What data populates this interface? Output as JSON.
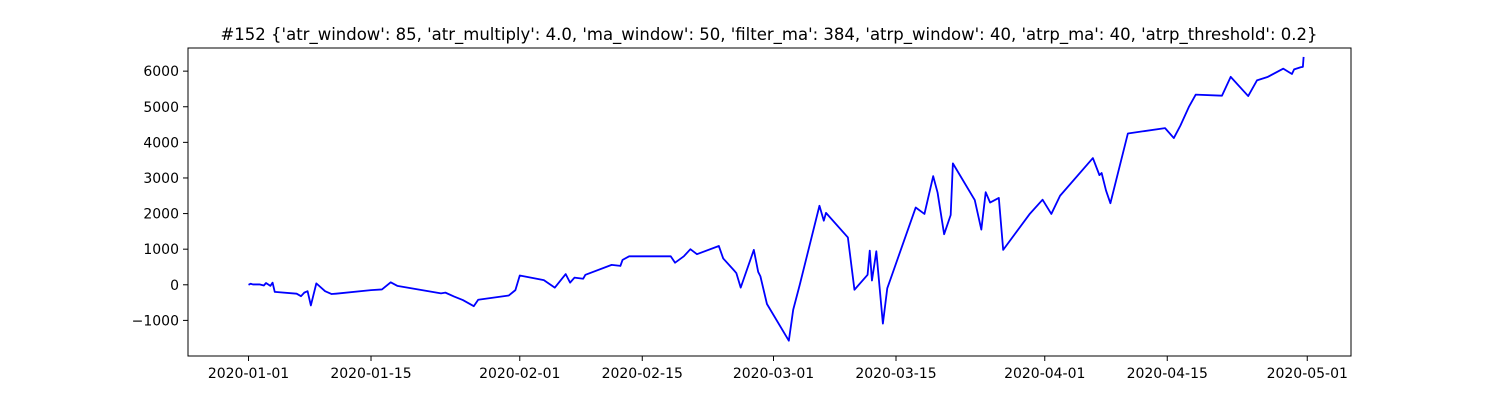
{
  "chart_data": {
    "type": "line",
    "title": "#152 {'atr_window': 85, 'atr_multiply': 4.0, 'ma_window': 50, 'filter_ma': 384, 'atrp_window': 40, 'atrp_ma': 40, 'atrp_threshold': 0.2}",
    "xlabel": "",
    "ylabel": "",
    "x_axis_type": "date",
    "xlim": [
      "2019-12-25T02:00",
      "2020-05-06T00:00"
    ],
    "ylim": [
      -2000,
      6650
    ],
    "grid": false,
    "legend": "none",
    "line_color": "#0000ff",
    "x_ticks": [
      "2020-01-01",
      "2020-01-15",
      "2020-02-01",
      "2020-02-15",
      "2020-03-01",
      "2020-03-15",
      "2020-04-01",
      "2020-04-15",
      "2020-05-01"
    ],
    "x_tick_labels": [
      "2020-01-01",
      "2020-01-15",
      "2020-02-01",
      "2020-02-15",
      "2020-03-01",
      "2020-03-15",
      "2020-04-01",
      "2020-04-15",
      "2020-05-01"
    ],
    "y_ticks": [
      -1000,
      0,
      1000,
      2000,
      3000,
      4000,
      5000,
      6000
    ],
    "y_tick_labels": [
      "−1000",
      "0",
      "1000",
      "2000",
      "3000",
      "4000",
      "5000",
      "6000"
    ],
    "series": [
      {
        "x": [
          "2020-01-01T00:00",
          "2020-01-01T06:00",
          "2020-01-01T12:00",
          "2020-01-02T06:00",
          "2020-01-02T18:00",
          "2020-01-03T00:00",
          "2020-01-03T12:00",
          "2020-01-03T18:00",
          "2020-01-04T00:00",
          "2020-01-06T12:00",
          "2020-01-07T00:00",
          "2020-01-07T09:00",
          "2020-01-07T18:00",
          "2020-01-08T03:00",
          "2020-01-08T18:00",
          "2020-01-09T18:00",
          "2020-01-10T12:00",
          "2020-01-11T00:00",
          "2020-01-15T00:00",
          "2020-01-16T06:00",
          "2020-01-17T06:00",
          "2020-01-18T00:00",
          "2020-01-23T00:00",
          "2020-01-23T12:00",
          "2020-01-24T12:00",
          "2020-01-25T12:00",
          "2020-01-26T18:00",
          "2020-01-27T06:00",
          "2020-01-30T18:00",
          "2020-01-31T12:00",
          "2020-02-01T00:00",
          "2020-02-03T18:00",
          "2020-02-05T00:00",
          "2020-02-06T06:00",
          "2020-02-06T18:00",
          "2020-02-07T06:00",
          "2020-02-08T06:00",
          "2020-02-08T12:00",
          "2020-02-11T12:00",
          "2020-02-12T12:00",
          "2020-02-12T18:00",
          "2020-02-13T12:00",
          "2020-02-18T06:00",
          "2020-02-18T18:00",
          "2020-02-19T18:00",
          "2020-02-20T12:00",
          "2020-02-21T06:00",
          "2020-02-23T18:00",
          "2020-02-24T06:00",
          "2020-02-25T12:00",
          "2020-02-25T18:00",
          "2020-02-26T06:00",
          "2020-02-27T18:00",
          "2020-02-28T06:00",
          "2020-02-28T12:00",
          "2020-02-29T06:00",
          "2020-03-02T18:00",
          "2020-03-03T06:00",
          "2020-03-04T00:00",
          "2020-03-06T06:00",
          "2020-03-06T18:00",
          "2020-03-07T00:00",
          "2020-03-09T12:00",
          "2020-03-10T06:00",
          "2020-03-11T18:00",
          "2020-03-12T00:00",
          "2020-03-12T06:00",
          "2020-03-12T18:00",
          "2020-03-13T12:00",
          "2020-03-14T00:00",
          "2020-03-17T06:00",
          "2020-03-18T06:00",
          "2020-03-19T06:00",
          "2020-03-19T18:00",
          "2020-03-20T12:00",
          "2020-03-21T06:00",
          "2020-03-21T12:00",
          "2020-03-24T00:00",
          "2020-03-24T18:00",
          "2020-03-25T06:00",
          "2020-03-25T18:00",
          "2020-03-26T18:00",
          "2020-03-27T06:00",
          "2020-03-30T06:00",
          "2020-03-31T18:00",
          "2020-04-01T18:00",
          "2020-04-02T18:00",
          "2020-04-06T12:00",
          "2020-04-07T06:00",
          "2020-04-07T12:00",
          "2020-04-08T00:00",
          "2020-04-08T12:00",
          "2020-04-10T12:00",
          "2020-04-14T18:00",
          "2020-04-15T18:00",
          "2020-04-16T12:00",
          "2020-04-17T12:00",
          "2020-04-18T06:00",
          "2020-04-21T06:00",
          "2020-04-22T06:00",
          "2020-04-24T06:00",
          "2020-04-25T06:00",
          "2020-04-26T12:00",
          "2020-04-28T06:00",
          "2020-04-29T06:00",
          "2020-04-29T12:00",
          "2020-04-30T06:00",
          "2020-04-30T12:00",
          "2020-04-30T14:00"
        ],
        "y": [
          0,
          30,
          10,
          10,
          -20,
          50,
          -30,
          60,
          -200,
          -250,
          -320,
          -220,
          -180,
          -580,
          40,
          -180,
          -260,
          -250,
          -150,
          -130,
          70,
          -30,
          -240,
          -220,
          -330,
          -430,
          -600,
          -420,
          -300,
          -150,
          260,
          130,
          -80,
          300,
          60,
          200,
          170,
          280,
          560,
          530,
          700,
          800,
          800,
          620,
          800,
          1000,
          860,
          1090,
          740,
          400,
          330,
          -80,
          980,
          360,
          240,
          -540,
          -1570,
          -700,
          0,
          2220,
          1800,
          2020,
          1330,
          -140,
          280,
          960,
          120,
          940,
          -1090,
          -100,
          2170,
          1990,
          3050,
          2590,
          1420,
          1960,
          3410,
          2380,
          1550,
          2600,
          2310,
          2440,
          980,
          1980,
          2390,
          1990,
          2500,
          3560,
          3080,
          3140,
          2650,
          2290,
          4250,
          4400,
          4120,
          4470,
          5010,
          5340,
          5310,
          5840,
          5300,
          5740,
          5840,
          6070,
          5920,
          6050,
          6110,
          6120,
          6400
        ]
      }
    ]
  }
}
